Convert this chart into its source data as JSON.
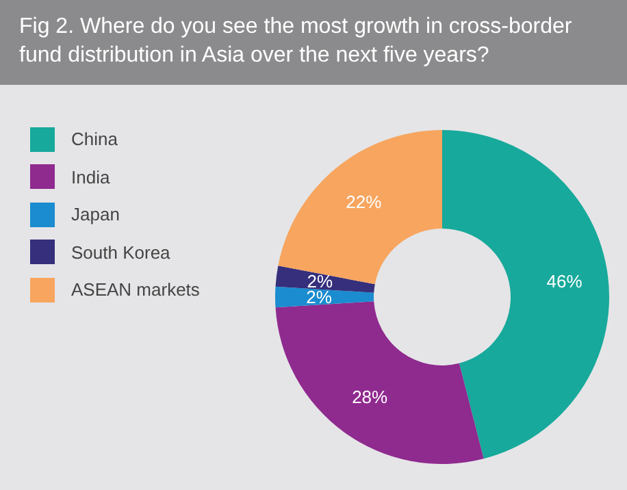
{
  "chart_data": {
    "type": "donut",
    "title": "Fig 2. Where do you see the most growth in cross-border fund distribution in Asia over the next five years?",
    "categories": [
      "China",
      "India",
      "Japan",
      "South Korea",
      "ASEAN markets"
    ],
    "values": [
      46,
      28,
      2,
      2,
      22
    ],
    "colors": [
      "#17a99b",
      "#8f2a8f",
      "#1a8ccf",
      "#352f7c",
      "#f7a55f"
    ],
    "value_labels": [
      "46%",
      "28%",
      "2%",
      "2%",
      "22%"
    ],
    "legend": "top left"
  }
}
